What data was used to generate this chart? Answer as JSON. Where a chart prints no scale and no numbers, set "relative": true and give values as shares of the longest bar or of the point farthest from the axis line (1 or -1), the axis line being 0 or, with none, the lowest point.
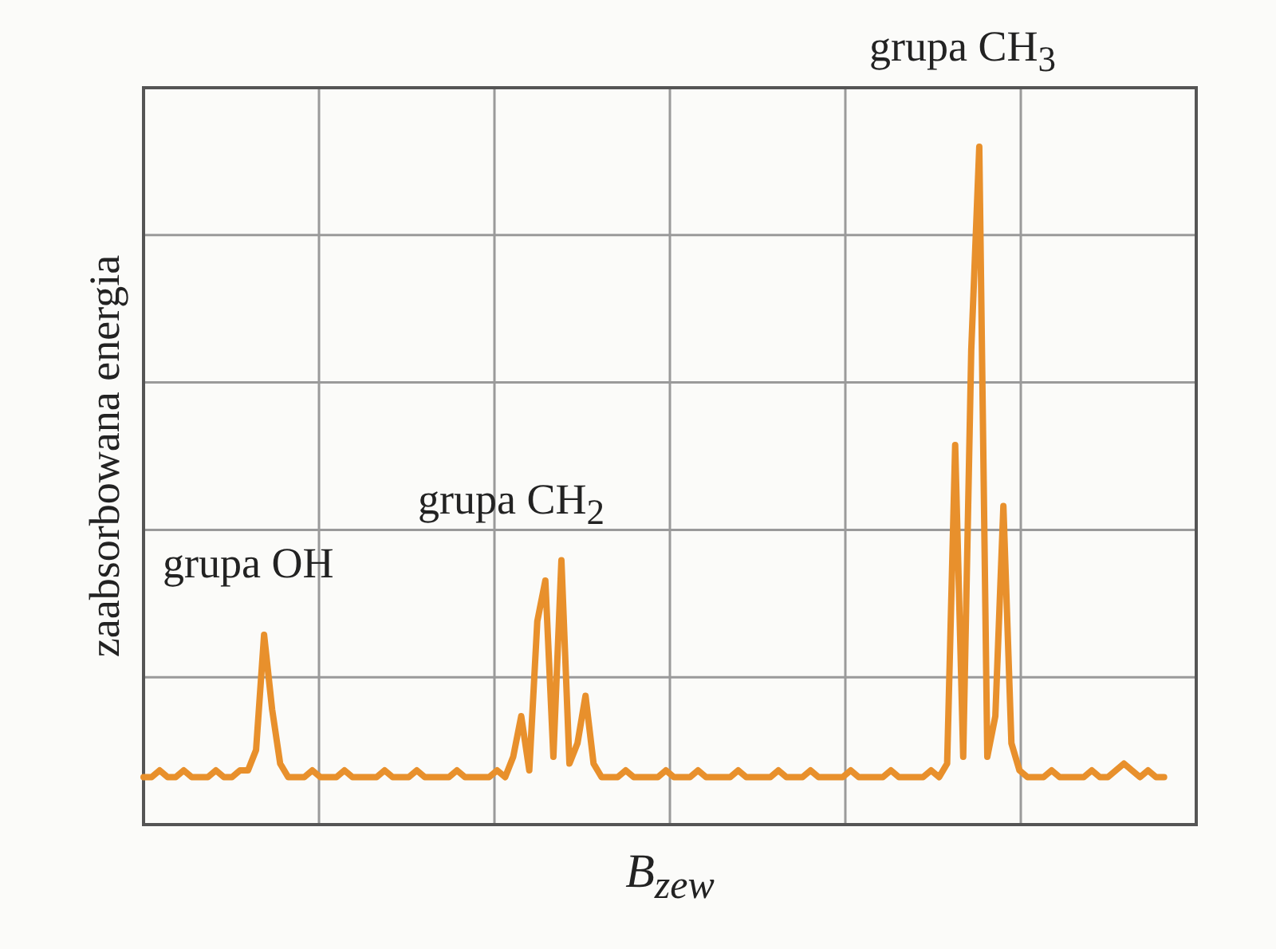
{
  "chart_data": {
    "type": "line",
    "relative": true,
    "xlabel": "B$_{zew}$",
    "ylabel": "zaabsorbowana energia",
    "grid": true,
    "marker": "none",
    "line_style": "solid",
    "annotations": [
      "grupa OH",
      "grupa CH$_{2}$",
      "grupa CH$_{3}$"
    ],
    "categories": [
      null,
      null,
      null,
      null,
      null,
      null,
      null,
      null,
      null,
      null,
      null,
      null,
      null,
      null,
      null,
      null,
      null,
      null,
      null,
      null,
      null,
      null,
      null,
      null,
      null,
      null,
      null,
      null,
      null,
      null,
      null,
      null,
      null,
      null,
      null,
      null,
      null,
      null,
      null,
      null,
      null,
      null,
      null,
      null,
      null,
      null,
      null,
      null,
      null,
      null,
      null,
      null,
      null,
      null,
      null,
      null,
      null,
      null,
      null,
      null,
      null,
      null,
      null,
      null,
      null,
      null,
      null,
      null,
      null,
      null,
      null,
      null,
      null,
      null,
      null,
      null,
      null,
      null,
      null,
      null,
      null,
      null,
      null,
      null,
      null,
      null,
      null,
      null,
      null,
      null,
      null,
      null,
      null,
      null,
      null,
      null,
      null,
      null,
      null,
      null,
      null,
      null,
      null,
      null,
      null,
      null,
      null,
      null,
      null,
      null,
      null,
      null,
      null,
      null,
      null,
      null,
      null,
      null,
      null,
      null,
      null,
      null,
      null,
      null,
      null,
      null,
      null,
      null,
      null,
      null,
      null,
      null
    ],
    "series": [
      {
        "color": "#e8902c",
        "values": [
          0.07,
          0.07,
          0.08,
          0.07,
          0.07,
          0.08,
          0.07,
          0.07,
          0.07,
          0.08,
          0.07,
          0.07,
          0.08,
          0.08,
          0.11,
          0.28,
          0.17,
          0.09,
          0.07,
          0.07,
          0.07,
          0.08,
          0.07,
          0.07,
          0.07,
          0.08,
          0.07,
          0.07,
          0.07,
          0.07,
          0.08,
          0.07,
          0.07,
          0.07,
          0.08,
          0.07,
          0.07,
          0.07,
          0.07,
          0.08,
          0.07,
          0.07,
          0.07,
          0.07,
          0.08,
          0.07,
          0.1,
          0.16,
          0.08,
          0.3,
          0.36,
          0.1,
          0.39,
          0.09,
          0.12,
          0.19,
          0.09,
          0.07,
          0.07,
          0.07,
          0.08,
          0.07,
          0.07,
          0.07,
          0.07,
          0.08,
          0.07,
          0.07,
          0.07,
          0.08,
          0.07,
          0.07,
          0.07,
          0.07,
          0.08,
          0.07,
          0.07,
          0.07,
          0.07,
          0.08,
          0.07,
          0.07,
          0.07,
          0.08,
          0.07,
          0.07,
          0.07,
          0.07,
          0.08,
          0.07,
          0.07,
          0.07,
          0.07,
          0.08,
          0.07,
          0.07,
          0.07,
          0.07,
          0.08,
          0.07,
          0.09,
          0.56,
          0.1,
          0.7,
          1.0,
          0.1,
          0.16,
          0.47,
          0.12,
          0.08,
          0.07,
          0.07,
          0.07,
          0.08,
          0.07,
          0.07,
          0.07,
          0.07,
          0.08,
          0.07,
          0.07,
          0.08,
          0.09,
          0.08,
          0.07,
          0.08,
          0.07,
          0.07,
          null,
          null,
          null,
          null
        ]
      }
    ]
  }
}
